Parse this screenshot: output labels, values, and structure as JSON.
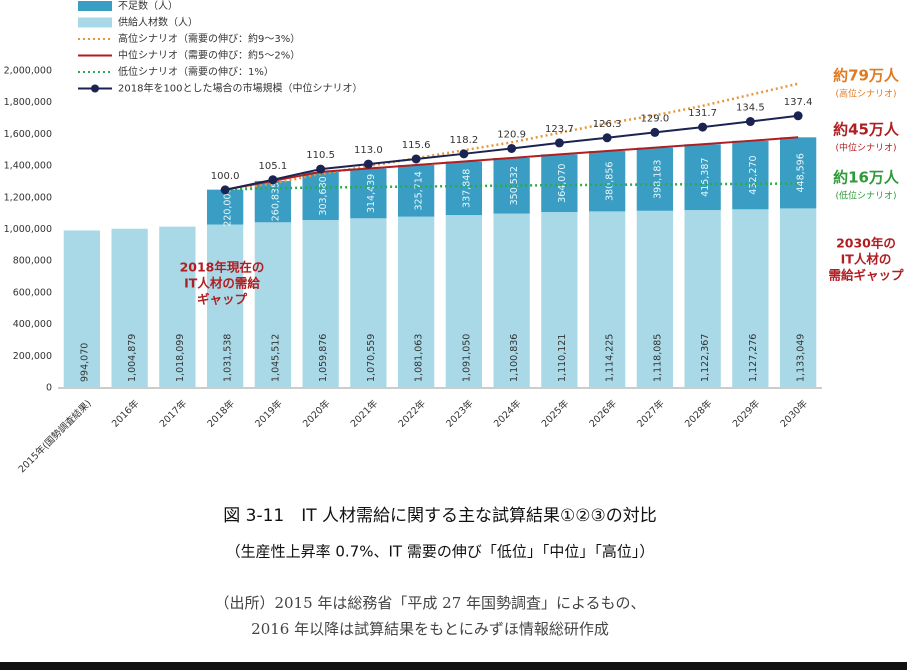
{
  "chart_data": {
    "type": "bar",
    "stacked": true,
    "categories": [
      "2015年(国勢調査結果)",
      "2016年",
      "2017年",
      "2018年",
      "2019年",
      "2020年",
      "2021年",
      "2022年",
      "2023年",
      "2024年",
      "2025年",
      "2026年",
      "2027年",
      "2028年",
      "2029年",
      "2030年"
    ],
    "series": [
      {
        "name": "不足数（人）",
        "type": "bar",
        "color": "#3a9ec4",
        "values": [
          null,
          null,
          null,
          220000,
          260835,
          303680,
          314439,
          325714,
          337848,
          350532,
          364070,
          380856,
          398183,
          415387,
          432270,
          448596
        ],
        "value_labels": [
          null,
          null,
          null,
          "220,000",
          "260,835",
          "303,680",
          "314,439",
          "325,714",
          "337,848",
          "350,532",
          "364,070",
          "380,856",
          "398,183",
          "415,387",
          "432,270",
          "448,596"
        ]
      },
      {
        "name": "供給人材数（人）",
        "type": "bar",
        "color": "#a9d9e7",
        "values": [
          994070,
          1004879,
          1018099,
          1031538,
          1045512,
          1059876,
          1070559,
          1081063,
          1091050,
          1100836,
          1110121,
          1114225,
          1118085,
          1122367,
          1127276,
          1133049
        ],
        "value_labels": [
          "994,070",
          "1,004,879",
          "1,018,099",
          "1,031,538",
          "1,045,512",
          "1,059,876",
          "1,070,559",
          "1,081,063",
          "1,091,050",
          "1,100,836",
          "1,110,121",
          "1,114,225",
          "1,118,085",
          "1,122,367",
          "1,127,276",
          "1,133,049"
        ]
      },
      {
        "name": "高位シナリオ（需要の伸び：約9～3%）",
        "type": "line",
        "style": "dotted",
        "color": "#e8963a",
        "values": [
          null,
          null,
          null,
          1251538,
          1290000,
          1350000,
          1400000,
          1450000,
          1500000,
          1550000,
          1610000,
          1670000,
          1720000,
          1780000,
          1850000,
          1920000
        ]
      },
      {
        "name": "中位シナリオ（需要の伸び：約5～2%）",
        "type": "line",
        "style": "solid",
        "color": "#b01e22",
        "values": [
          null,
          null,
          null,
          1251538,
          1306347,
          1363556,
          1384998,
          1406777,
          1428898,
          1451368,
          1474191,
          1495081,
          1516268,
          1537754,
          1559546,
          1581645
        ]
      },
      {
        "name": "低位シナリオ（需要の伸び：1%）",
        "type": "line",
        "style": "dotted",
        "color": "#2eaa4a",
        "values": [
          null,
          null,
          null,
          1252000,
          1260000,
          1265000,
          1268000,
          1271000,
          1274000,
          1277000,
          1280000,
          1282000,
          1284000,
          1286000,
          1288000,
          1290000
        ]
      },
      {
        "name": "2018年を100とした場合の市場規模（中位シナリオ）",
        "type": "line",
        "style": "solid",
        "markers": true,
        "axis": "y2",
        "color": "#1b2352",
        "values": [
          null,
          null,
          null,
          100,
          105.1,
          110.5,
          113,
          115.6,
          118.2,
          120.9,
          123.7,
          126.3,
          129,
          131.7,
          134.5,
          137.4
        ],
        "value_labels": [
          null,
          null,
          null,
          "100.0",
          "105.1",
          "110.5",
          "113.0",
          "115.6",
          "118.2",
          "120.9",
          "123.7",
          "126.3",
          "129.0",
          "131.7",
          "134.5",
          "137.4"
        ]
      }
    ],
    "ylim": [
      0,
      2000000
    ],
    "yticks": [
      0,
      {
        "value": 200000,
        "label": "200,000"
      },
      {
        "value": 400000,
        "label": "400,000"
      },
      {
        "value": 600000,
        "label": "600,000"
      },
      {
        "value": 800000,
        "label": "800,000"
      },
      {
        "value": 1000000,
        "label": "1,000,000"
      },
      {
        "value": 1200000,
        "label": "1,200,000"
      },
      {
        "value": 1400000,
        "label": "1,400,000"
      },
      {
        "value": 1600000,
        "label": "1,600,000"
      },
      {
        "value": 1800000,
        "label": "1,800,000"
      },
      {
        "value": 2000000,
        "label": "2,000,000"
      }
    ],
    "y2lim": [
      0,
      160
    ],
    "legend": "top-left",
    "annotations": [
      {
        "lines": [
          "約79万人"
        ],
        "sub": "(高位シナリオ)",
        "color": "#e07a20"
      },
      {
        "lines": [
          "約45万人"
        ],
        "sub": "(中位シナリオ)",
        "color": "#b01e22"
      },
      {
        "lines": [
          "約16万人"
        ],
        "sub": "(低位シナリオ)",
        "color": "#2e9a3a"
      },
      {
        "lines": [
          "2018年現在の",
          "IT人材の需給",
          "ギャップ"
        ],
        "color": "#b01e22"
      },
      {
        "lines": [
          "2030年の",
          "IT人材の",
          "需給ギャップ"
        ],
        "color": "#b01e22"
      }
    ],
    "caption": {
      "title": "図 3-11　IT 人材需給に関する主な試算結果①②③の対比",
      "subtitle": "（生産性上昇率 0.7%、IT 需要の伸び「低位」「中位」「高位」）",
      "source": [
        "（出所）2015 年は総務省「平成 27 年国勢調査」によるもの、",
        "2016 年以降は試算結果をもとにみずほ情報総研作成"
      ]
    }
  }
}
